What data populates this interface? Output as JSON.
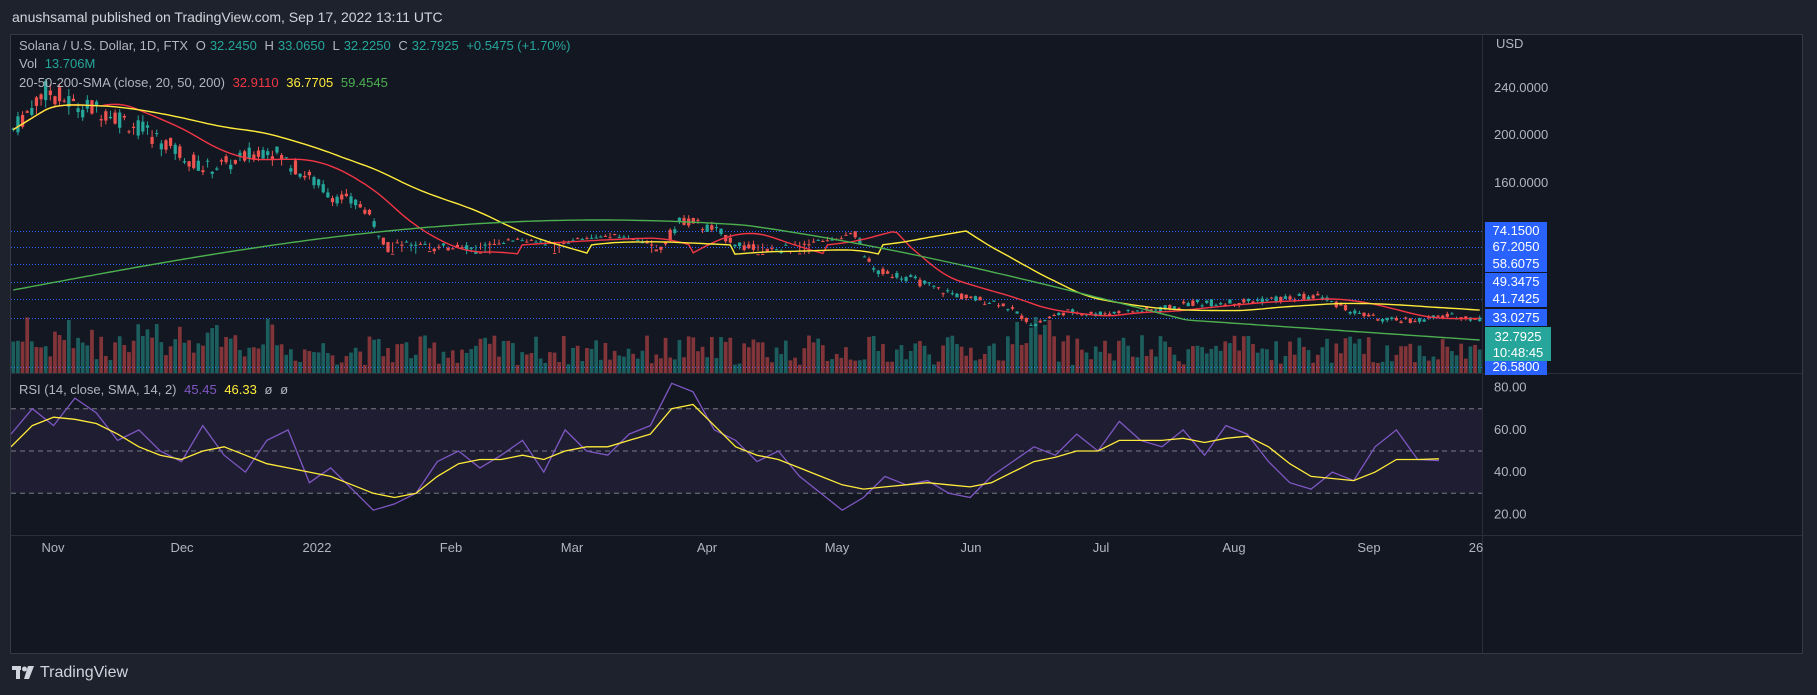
{
  "header": {
    "published": "anushsamal published on TradingView.com, Sep 17, 2022 13:11 UTC"
  },
  "footer": {
    "brand": "TradingView"
  },
  "legend": {
    "symbol": "Solana / U.S. Dollar, 1D, FTX",
    "o_label": "O",
    "o_value": "32.2450",
    "h_label": "H",
    "h_value": "33.0650",
    "l_label": "L",
    "l_value": "32.2250",
    "c_label": "C",
    "c_value": "32.7925",
    "change": "+0.5475 (+1.70%)",
    "vol_label": "Vol",
    "vol_value": "13.706M",
    "sma_label": "20-50-200-SMA (close, 20, 50, 200)",
    "sma20": "32.9110",
    "sma50": "36.7705",
    "sma200": "59.4545",
    "rsi_label": "RSI (14, close, SMA, 14, 2)",
    "rsi_value": "45.45",
    "rsi_sma": "46.33",
    "rsi_extra1": "ø",
    "rsi_extra2": "ø"
  },
  "colors": {
    "bg": "#131722",
    "up": "#26a69a",
    "down": "#ef5350",
    "sma20": "#f23645",
    "sma50": "#ffeb3b",
    "sma200": "#4caf50",
    "rsi": "#7e57c2",
    "rsi_sma": "#ffeb3b",
    "level": "#2962ff"
  },
  "chart_data": {
    "type": "candlestick",
    "currency": "USD",
    "price_scale": {
      "ticks": [
        "240.0000",
        "200.0000",
        "160.0000"
      ]
    },
    "x_ticks": [
      "Nov",
      "Dec",
      "2022",
      "Feb",
      "Mar",
      "Apr",
      "May",
      "Jun",
      "Jul",
      "Aug",
      "Sep",
      "26"
    ],
    "horizontal_levels": [
      "74.1500",
      "67.2050",
      "58.6075",
      "49.3475",
      "41.7425",
      "33.0275",
      "26.5800"
    ],
    "last_price": "32.7925",
    "countdown": "10:48:45",
    "close_path": [
      {
        "date": "Nov 1",
        "close": 205
      },
      {
        "date": "Nov 8",
        "close": 238
      },
      {
        "date": "Nov 15",
        "close": 225
      },
      {
        "date": "Nov 22",
        "close": 220
      },
      {
        "date": "Nov 29",
        "close": 205
      },
      {
        "date": "Dec 6",
        "close": 190
      },
      {
        "date": "Dec 13",
        "close": 172
      },
      {
        "date": "Dec 20",
        "close": 178
      },
      {
        "date": "Dec 27",
        "close": 190
      },
      {
        "date": "Jan 3",
        "close": 170
      },
      {
        "date": "Jan 10",
        "close": 150
      },
      {
        "date": "Jan 17",
        "close": 140
      },
      {
        "date": "Jan 24",
        "close": 95
      },
      {
        "date": "Jan 31",
        "close": 100
      },
      {
        "date": "Feb 7",
        "close": 110
      },
      {
        "date": "Feb 14",
        "close": 95
      },
      {
        "date": "Feb 21",
        "close": 90
      },
      {
        "date": "Feb 28",
        "close": 98
      },
      {
        "date": "Mar 7",
        "close": 85
      },
      {
        "date": "Mar 14",
        "close": 82
      },
      {
        "date": "Mar 21",
        "close": 95
      },
      {
        "date": "Mar 28",
        "close": 130
      },
      {
        "date": "Apr 4",
        "close": 120
      },
      {
        "date": "Apr 11",
        "close": 105
      },
      {
        "date": "Apr 18",
        "close": 102
      },
      {
        "date": "Apr 25",
        "close": 95
      },
      {
        "date": "May 2",
        "close": 85
      },
      {
        "date": "May 9",
        "close": 55
      },
      {
        "date": "May 16",
        "close": 52
      },
      {
        "date": "May 23",
        "close": 46
      },
      {
        "date": "May 30",
        "close": 42
      },
      {
        "date": "Jun 6",
        "close": 40
      },
      {
        "date": "Jun 13",
        "close": 30
      },
      {
        "date": "Jun 20",
        "close": 36
      },
      {
        "date": "Jun 27",
        "close": 35
      },
      {
        "date": "Jul 4",
        "close": 36
      },
      {
        "date": "Jul 11",
        "close": 37
      },
      {
        "date": "Jul 18",
        "close": 40
      },
      {
        "date": "Jul 25",
        "close": 40
      },
      {
        "date": "Aug 1",
        "close": 41
      },
      {
        "date": "Aug 8",
        "close": 42
      },
      {
        "date": "Aug 15",
        "close": 43
      },
      {
        "date": "Aug 22",
        "close": 36
      },
      {
        "date": "Aug 29",
        "close": 32
      },
      {
        "date": "Sep 5",
        "close": 32
      },
      {
        "date": "Sep 12",
        "close": 34
      },
      {
        "date": "Sep 17",
        "close": 32.79
      }
    ],
    "rsi": {
      "levels": [
        "80.00",
        "60.00",
        "40.00",
        "20.00"
      ],
      "band_upper": 70,
      "band_lower": 30,
      "mid": 50,
      "values": [
        58,
        70,
        62,
        75,
        68,
        55,
        60,
        50,
        45,
        62,
        48,
        40,
        55,
        60,
        35,
        42,
        32,
        22,
        25,
        30,
        45,
        50,
        42,
        48,
        55,
        40,
        60,
        50,
        48,
        58,
        62,
        82,
        78,
        60,
        55,
        45,
        50,
        38,
        30,
        22,
        28,
        38,
        34,
        36,
        30,
        28,
        38,
        45,
        52,
        48,
        58,
        50,
        64,
        55,
        52,
        60,
        48,
        62,
        58,
        45,
        35,
        32,
        40,
        36,
        52,
        60,
        46,
        45.45
      ],
      "sma_values": [
        52,
        62,
        66,
        65,
        63,
        58,
        52,
        48,
        46,
        50,
        52,
        48,
        44,
        42,
        40,
        38,
        34,
        30,
        28,
        30,
        38,
        44,
        46,
        46,
        48,
        46,
        50,
        52,
        52,
        55,
        58,
        70,
        72,
        62,
        52,
        48,
        46,
        42,
        38,
        34,
        32,
        33,
        34,
        35,
        34,
        33,
        35,
        40,
        45,
        47,
        50,
        50,
        55,
        55,
        55,
        56,
        54,
        56,
        57,
        52,
        44,
        38,
        37,
        36,
        40,
        46,
        46,
        46.33
      ]
    }
  }
}
